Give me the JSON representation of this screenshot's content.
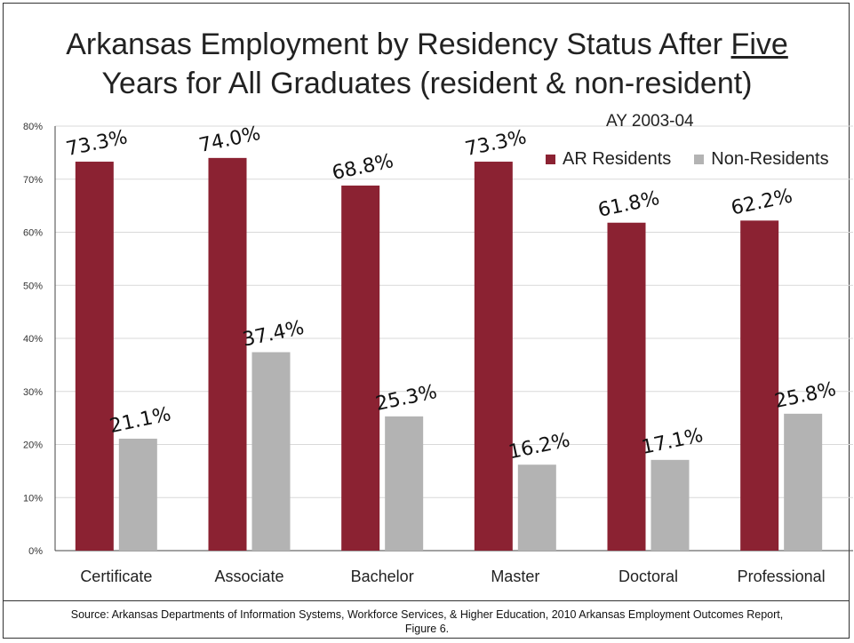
{
  "title": {
    "line1_pre": "Arkansas Employment by Residency Status After ",
    "line1_underline": "Five",
    "line2": "Years for All Graduates (resident & non-resident)"
  },
  "subtitle": "AY 2003-04",
  "footer": {
    "line1": "Source: Arkansas Departments of Information Systems, Workforce Services, & Higher Education, 2010 Arkansas Employment Outcomes Report,",
    "line2": "Figure 6."
  },
  "colors": {
    "residents": "#8b2232",
    "non_residents": "#b3b3b3",
    "grid": "#d9d9d9",
    "axis": "#444444"
  },
  "chart_data": {
    "type": "bar",
    "categories": [
      "Certificate",
      "Associate",
      "Bachelor",
      "Master",
      "Doctoral",
      "Professional"
    ],
    "series": [
      {
        "name": "AR Residents",
        "values": [
          73.3,
          74.0,
          68.8,
          73.3,
          61.8,
          62.2
        ],
        "labels": [
          "73.3%",
          "74.0%",
          "68.8%",
          "73.3%",
          "61.8%",
          "62.2%"
        ]
      },
      {
        "name": "Non-Residents",
        "values": [
          21.1,
          37.4,
          25.3,
          16.2,
          17.1,
          25.8
        ],
        "labels": [
          "21.1%",
          "37.4%",
          "25.3%",
          "16.2%",
          "17.1%",
          "25.8%"
        ]
      }
    ],
    "ylim": [
      0,
      80
    ],
    "yticks": [
      "0%",
      "10%",
      "20%",
      "30%",
      "40%",
      "50%",
      "60%",
      "70%",
      "80%"
    ],
    "xlabel": "",
    "ylabel": "",
    "grid": true,
    "legend": "top-right"
  }
}
